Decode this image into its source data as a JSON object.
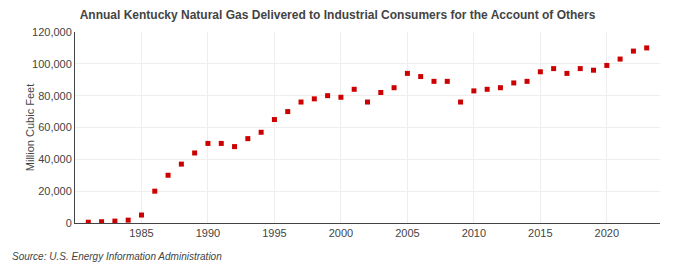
{
  "chart_data": {
    "type": "scatter",
    "title": "Annual Kentucky Natural Gas Delivered to Industrial Consumers for the Account of Others",
    "ylabel": "Million Cubic Feet",
    "annotations": [
      "Source: U.S. Energy Information Administration"
    ],
    "x": [
      1981,
      1982,
      1983,
      1984,
      1985,
      1986,
      1987,
      1988,
      1989,
      1990,
      1991,
      1992,
      1993,
      1994,
      1995,
      1996,
      1997,
      1998,
      1999,
      2000,
      2001,
      2002,
      2003,
      2004,
      2005,
      2006,
      2007,
      2008,
      2009,
      2010,
      2011,
      2012,
      2013,
      2014,
      2015,
      2016,
      2017,
      2018,
      2019,
      2020,
      2021,
      2022,
      2023
    ],
    "values": [
      500,
      800,
      1200,
      1800,
      5000,
      20000,
      30000,
      37000,
      44000,
      50000,
      50000,
      48000,
      53000,
      57000,
      65000,
      70000,
      76000,
      78000,
      80000,
      79000,
      84000,
      76000,
      82000,
      85000,
      94000,
      92000,
      89000,
      89000,
      76000,
      83000,
      84000,
      85000,
      88000,
      89000,
      95000,
      97000,
      94000,
      97000,
      96000,
      99000,
      103000,
      108000,
      110000
    ],
    "color": "#cc0000",
    "marker": "square",
    "xlim": [
      1980,
      2024
    ],
    "xticks": [
      1985,
      1990,
      1995,
      2000,
      2005,
      2010,
      2015,
      2020
    ],
    "ylim": [
      0,
      120000
    ],
    "yticks": [
      0,
      {
        "value": 20000,
        "label": "20,000"
      },
      {
        "value": 40000,
        "label": "40,000"
      },
      {
        "value": 60000,
        "label": "60,000"
      },
      {
        "value": 80000,
        "label": "80,000"
      },
      {
        "value": 100000,
        "label": "100,000"
      },
      {
        "value": 120000,
        "label": "120,000"
      }
    ],
    "grid": true
  }
}
